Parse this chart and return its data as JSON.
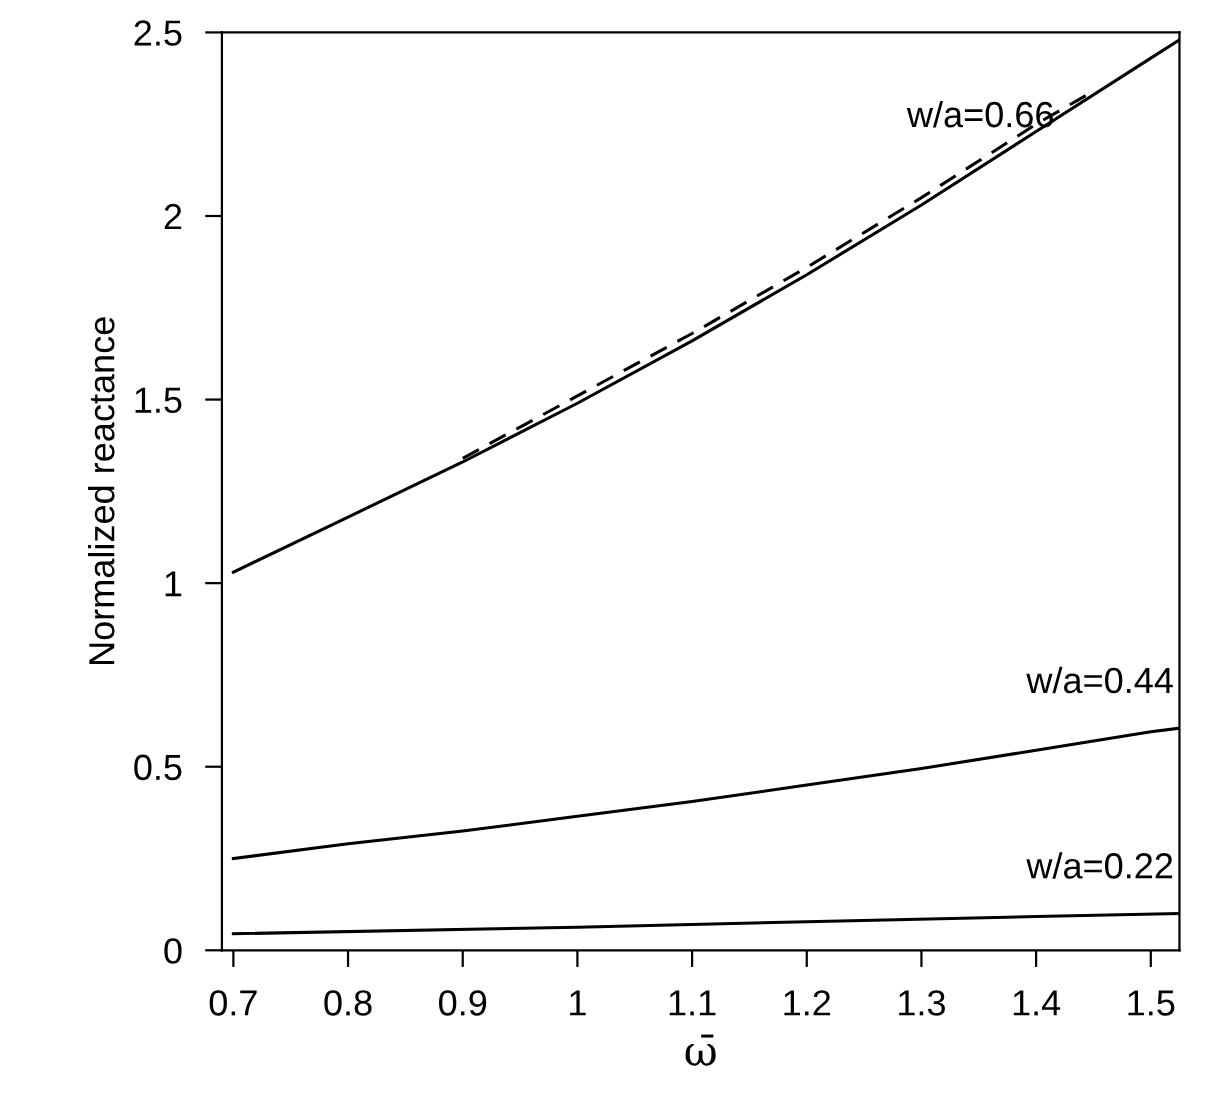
{
  "chart_data": {
    "type": "line",
    "xlabel": "ω̄",
    "ylabel": "Normalized reactance",
    "xlim": [
      0.69,
      1.525
    ],
    "ylim": [
      0,
      2.5
    ],
    "xticks": [
      0.7,
      0.8,
      0.9,
      1,
      1.1,
      1.2,
      1.3,
      1.4,
      1.5
    ],
    "yticks": [
      0,
      0.5,
      1,
      1.5,
      2,
      2.5
    ],
    "grid": false,
    "marker": "none",
    "series": [
      {
        "name": "w/a=0.66",
        "color": "#000000",
        "line_style": "solid",
        "x": [
          0.7,
          0.8,
          0.9,
          1.0,
          1.1,
          1.2,
          1.3,
          1.4,
          1.5,
          1.525
        ],
        "values": [
          1.03,
          1.18,
          1.33,
          1.49,
          1.66,
          1.84,
          2.03,
          2.23,
          2.43,
          2.48
        ]
      },
      {
        "color": "#000000",
        "line_style": "dashed",
        "x": [
          0.9,
          1.0,
          1.1,
          1.2,
          1.3,
          1.4,
          1.45
        ],
        "values": [
          1.34,
          1.51,
          1.68,
          1.86,
          2.05,
          2.25,
          2.34
        ]
      },
      {
        "name": "w/a=0.44",
        "color": "#000000",
        "line_style": "solid",
        "x": [
          0.7,
          0.8,
          0.9,
          1.0,
          1.1,
          1.2,
          1.3,
          1.4,
          1.5,
          1.525
        ],
        "values": [
          0.25,
          0.29,
          0.325,
          0.365,
          0.405,
          0.45,
          0.495,
          0.545,
          0.595,
          0.605
        ]
      },
      {
        "name": "w/a=0.22",
        "color": "#000000",
        "line_style": "solid",
        "x": [
          0.7,
          1.0,
          1.2,
          1.4,
          1.525
        ],
        "values": [
          0.045,
          0.063,
          0.078,
          0.092,
          0.1
        ]
      }
    ]
  }
}
